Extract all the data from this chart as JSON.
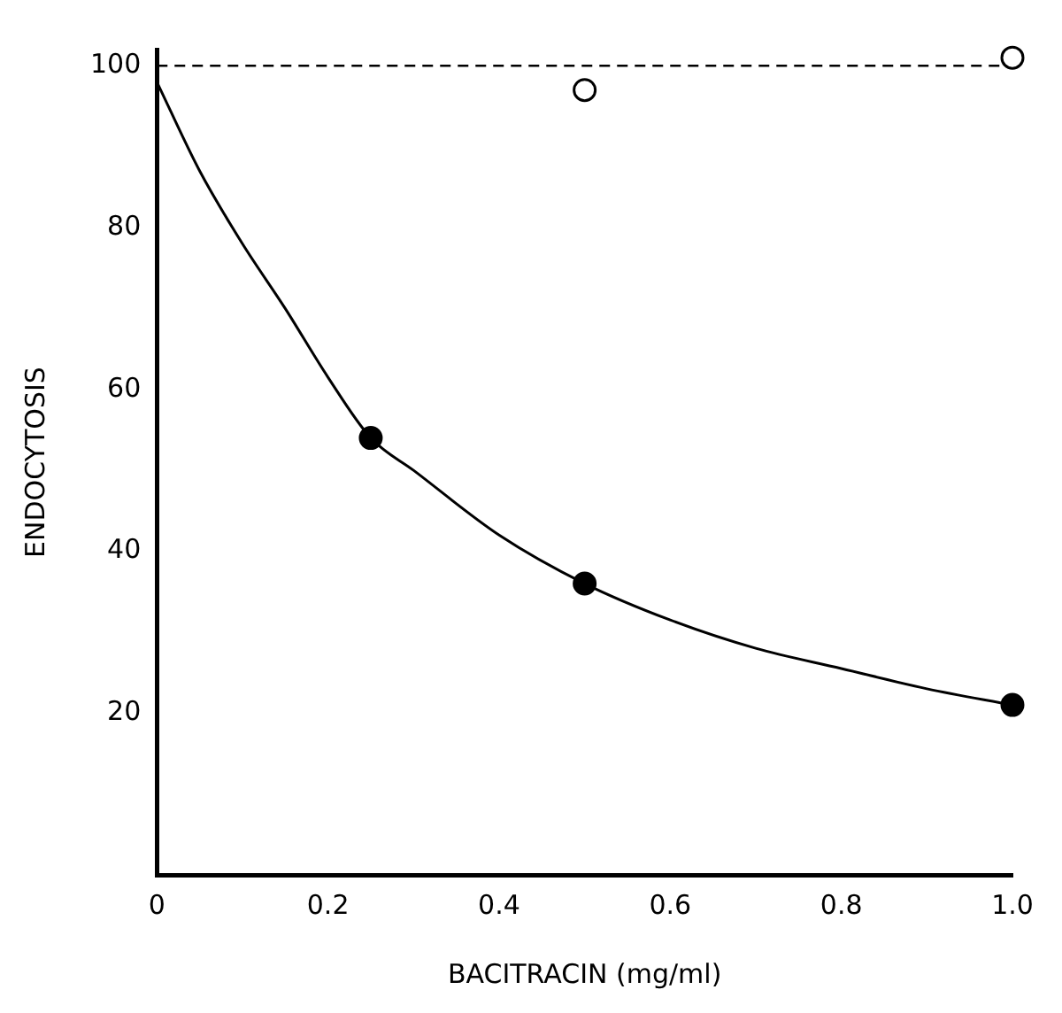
{
  "chart_data": {
    "type": "scatter",
    "xlabel": "BACITRACIN (mg/ml)",
    "ylabel": "ENDOCYTOSIS",
    "xlim": [
      0,
      1
    ],
    "xticks": [
      0,
      0.2,
      0.4,
      0.6,
      0.8,
      {
        "value": 1,
        "label": "1.0"
      }
    ],
    "ylim": [
      0,
      102
    ],
    "yticks": [
      20,
      40,
      60,
      80,
      100
    ],
    "grid": false,
    "legend": false,
    "ref_lines": [
      {
        "axis": "y",
        "value": 100,
        "color": "#000000",
        "line_style": "dashed"
      }
    ],
    "series": [
      {
        "type": "line",
        "color": "#000000",
        "marker": "none",
        "line_style": "solid",
        "x": [
          0,
          0.05,
          0.1,
          0.15,
          0.2,
          0.25,
          0.3,
          0.4,
          0.5,
          0.6,
          0.7,
          0.8,
          0.9,
          1
        ],
        "values": [
          98,
          87,
          78,
          70,
          61.5,
          54,
          50,
          42,
          36,
          31.5,
          28,
          25.5,
          23,
          21
        ]
      },
      {
        "type": "scatter",
        "color": "#000000",
        "marker": "circle",
        "x": [
          0.25,
          0.5,
          1
        ],
        "values": [
          54,
          36,
          21
        ]
      },
      {
        "type": "scatter",
        "color": "#ffffff",
        "marker": "circle",
        "x": [
          0.5,
          1
        ],
        "values": [
          97,
          101
        ]
      }
    ]
  }
}
